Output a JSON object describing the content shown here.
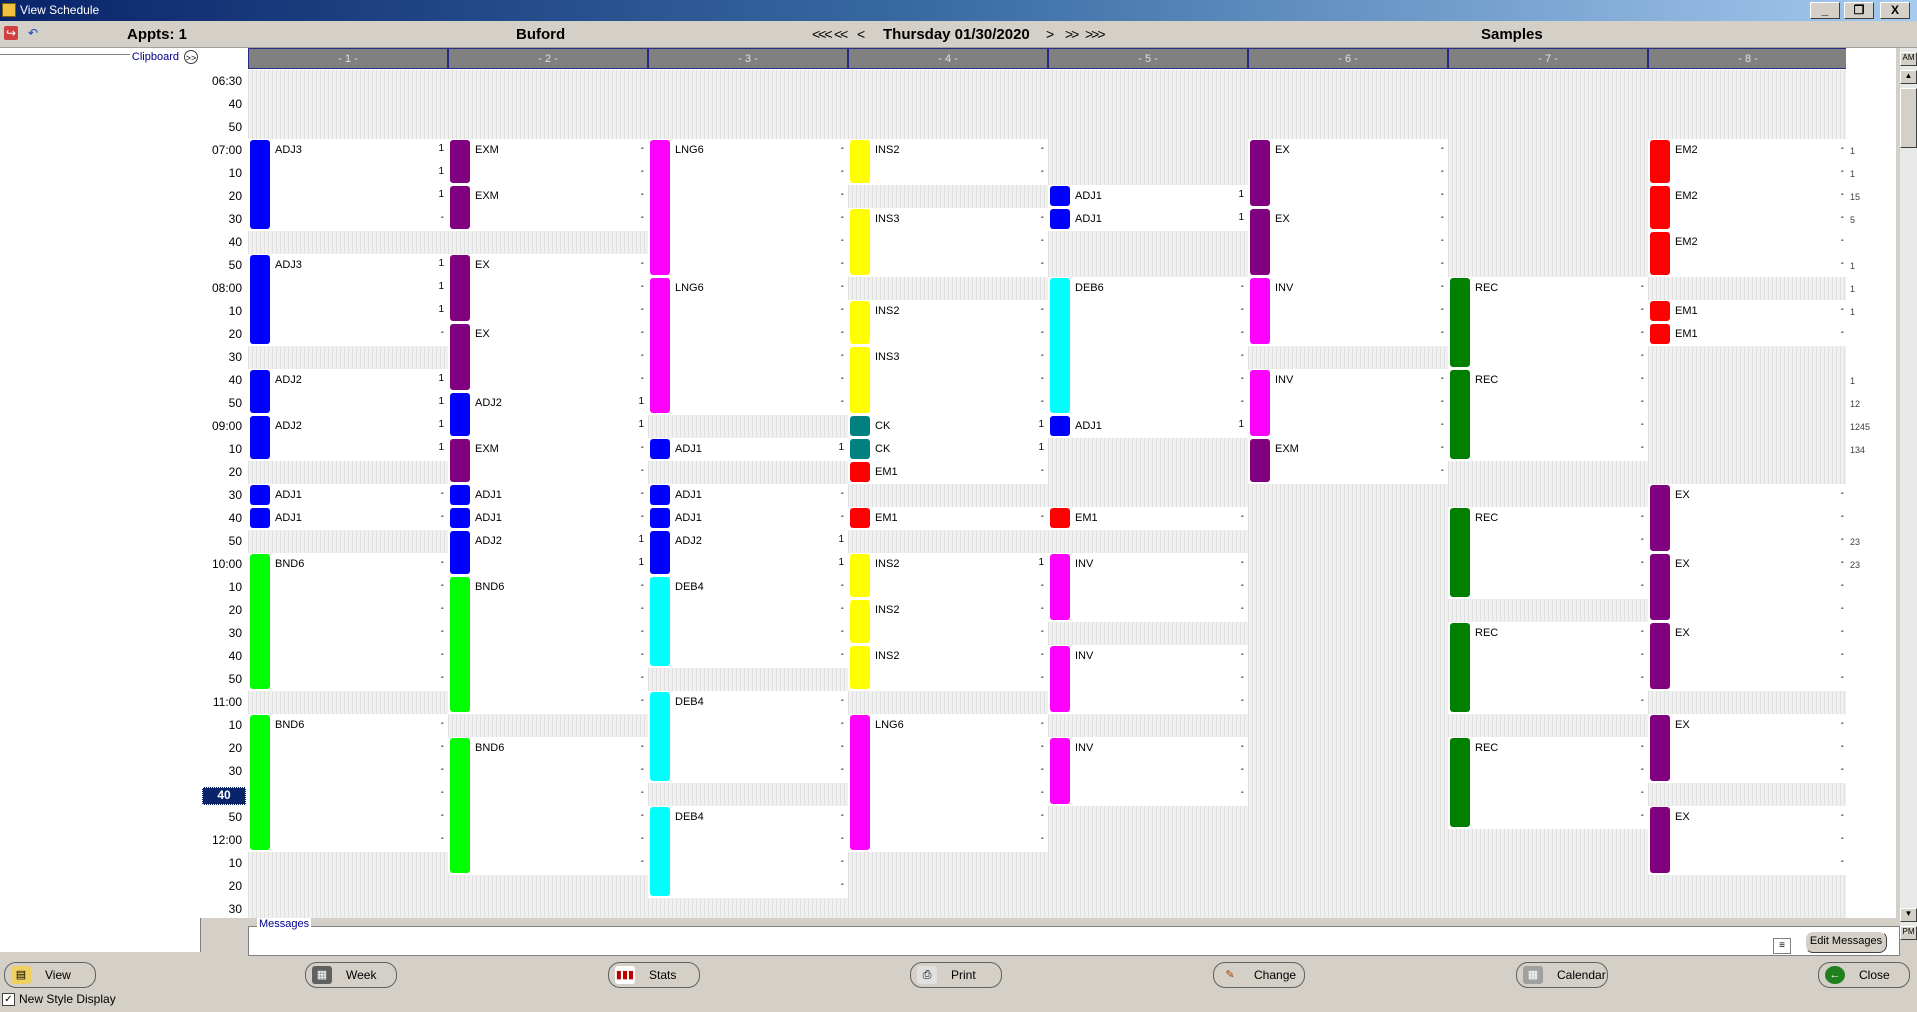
{
  "window": {
    "title": "View Schedule",
    "buttons": [
      "_",
      "❐",
      "X"
    ]
  },
  "header": {
    "appts": "Appts: 1",
    "location": "Buford",
    "nav_first": "<<<",
    "nav_prev_week": "<<",
    "nav_prev": "<",
    "date": "Thursday 01/30/2020",
    "nav_next": ">",
    "nav_next_week": ">>",
    "nav_last": ">>>",
    "view_name": "Samples"
  },
  "left_panel": {
    "clipboard_label": "Clipboard",
    "clipboard_button": ">>"
  },
  "times": [
    "06:30",
    "40",
    "50",
    "07:00",
    "10",
    "20",
    "30",
    "40",
    "50",
    "08:00",
    "10",
    "20",
    "30",
    "40",
    "50",
    "09:00",
    "10",
    "20",
    "30",
    "40",
    "50",
    "10:00",
    "10",
    "20",
    "30",
    "40",
    "50",
    "11:00",
    "10",
    "20",
    "30",
    "40",
    "50",
    "12:00",
    "10",
    "20",
    "30"
  ],
  "selected_time_index": 31,
  "columns": [
    "- 1 -",
    "- 2 -",
    "- 3 -",
    "- 4 -",
    "- 5 -",
    "- 6 -",
    "- 7 -",
    "- 8 -"
  ],
  "colors": {
    "ADJ": "#0000ff",
    "EXM": "#800080",
    "LNG6": "#ff00ff",
    "INS": "#ffff00",
    "EM": "#ff0000",
    "DEB6": "#00ffff",
    "EX": "#800080",
    "REC": "#008000",
    "BND6": "#00ff00",
    "CK": "#008080",
    "INV": "#ff00ff",
    "DEB4": "#00ffff"
  },
  "appointments": [
    {
      "col": 0,
      "slot": 3,
      "len": 4,
      "code": "ADJ3",
      "color": "#0000ff",
      "vals": [
        "1",
        "1",
        "1",
        "-"
      ]
    },
    {
      "col": 0,
      "slot": 8,
      "len": 4,
      "code": "ADJ3",
      "color": "#0000ff",
      "vals": [
        "1",
        "1",
        "1",
        "-"
      ]
    },
    {
      "col": 0,
      "slot": 13,
      "len": 2,
      "code": "ADJ2",
      "color": "#0000ff",
      "vals": [
        "1",
        "1"
      ]
    },
    {
      "col": 0,
      "slot": 15,
      "len": 2,
      "code": "ADJ2",
      "color": "#0000ff",
      "vals": [
        "1",
        "1"
      ]
    },
    {
      "col": 0,
      "slot": 18,
      "len": 1,
      "code": "ADJ1",
      "color": "#0000ff",
      "vals": [
        "-"
      ]
    },
    {
      "col": 0,
      "slot": 19,
      "len": 1,
      "code": "ADJ1",
      "color": "#0000ff",
      "vals": [
        "-"
      ]
    },
    {
      "col": 0,
      "slot": 21,
      "len": 6,
      "code": "BND6",
      "color": "#00ff00",
      "vals": [
        "-",
        "-",
        "-",
        "-",
        "-",
        "-"
      ]
    },
    {
      "col": 0,
      "slot": 28,
      "len": 6,
      "code": "BND6",
      "color": "#00ff00",
      "vals": [
        "-",
        "-",
        "-",
        "-",
        "-",
        "-"
      ]
    },
    {
      "col": 1,
      "slot": 3,
      "len": 2,
      "code": "EXM",
      "color": "#800080",
      "vals": [
        "-",
        "-"
      ]
    },
    {
      "col": 1,
      "slot": 5,
      "len": 2,
      "code": "EXM",
      "color": "#800080",
      "vals": [
        "-",
        "-"
      ]
    },
    {
      "col": 1,
      "slot": 8,
      "len": 3,
      "code": "EX",
      "color": "#800080",
      "vals": [
        "-",
        "-",
        "-"
      ]
    },
    {
      "col": 1,
      "slot": 11,
      "len": 3,
      "code": "EX",
      "color": "#800080",
      "vals": [
        "-",
        "-",
        "-"
      ]
    },
    {
      "col": 1,
      "slot": 14,
      "len": 2,
      "code": "ADJ2",
      "color": "#0000ff",
      "vals": [
        "1",
        "1"
      ]
    },
    {
      "col": 1,
      "slot": 16,
      "len": 2,
      "code": "EXM",
      "color": "#800080",
      "vals": [
        "-",
        "-"
      ]
    },
    {
      "col": 1,
      "slot": 18,
      "len": 1,
      "code": "ADJ1",
      "color": "#0000ff",
      "vals": [
        "-"
      ]
    },
    {
      "col": 1,
      "slot": 19,
      "len": 1,
      "code": "ADJ1",
      "color": "#0000ff",
      "vals": [
        "-"
      ]
    },
    {
      "col": 1,
      "slot": 20,
      "len": 2,
      "code": "ADJ2",
      "color": "#0000ff",
      "vals": [
        "1",
        "1"
      ]
    },
    {
      "col": 1,
      "slot": 22,
      "len": 6,
      "code": "BND6",
      "color": "#00ff00",
      "vals": [
        "-",
        "-",
        "-",
        "-",
        "-",
        "-"
      ]
    },
    {
      "col": 1,
      "slot": 29,
      "len": 6,
      "code": "BND6",
      "color": "#00ff00",
      "vals": [
        "-",
        "-",
        "-",
        "-",
        "-",
        "-"
      ]
    },
    {
      "col": 2,
      "slot": 3,
      "len": 6,
      "code": "LNG6",
      "color": "#ff00ff",
      "vals": [
        "-",
        "-",
        "-",
        "-",
        "-",
        "-"
      ]
    },
    {
      "col": 2,
      "slot": 9,
      "len": 6,
      "code": "LNG6",
      "color": "#ff00ff",
      "vals": [
        "-",
        "-",
        "-",
        "-",
        "-",
        "-"
      ]
    },
    {
      "col": 2,
      "slot": 16,
      "len": 1,
      "code": "ADJ1",
      "color": "#0000ff",
      "vals": [
        "1"
      ]
    },
    {
      "col": 2,
      "slot": 18,
      "len": 1,
      "code": "ADJ1",
      "color": "#0000ff",
      "vals": [
        "-"
      ]
    },
    {
      "col": 2,
      "slot": 19,
      "len": 1,
      "code": "ADJ1",
      "color": "#0000ff",
      "vals": [
        "-"
      ]
    },
    {
      "col": 2,
      "slot": 20,
      "len": 2,
      "code": "ADJ2",
      "color": "#0000ff",
      "vals": [
        "1",
        "1"
      ]
    },
    {
      "col": 2,
      "slot": 22,
      "len": 4,
      "code": "DEB4",
      "color": "#00ffff",
      "vals": [
        "-",
        "-",
        "-",
        "-"
      ]
    },
    {
      "col": 2,
      "slot": 27,
      "len": 4,
      "code": "DEB4",
      "color": "#00ffff",
      "vals": [
        "-",
        "-",
        "-",
        "-"
      ]
    },
    {
      "col": 2,
      "slot": 32,
      "len": 4,
      "code": "DEB4",
      "color": "#00ffff",
      "vals": [
        "-",
        "-",
        "-",
        "-"
      ]
    },
    {
      "col": 3,
      "slot": 3,
      "len": 2,
      "code": "INS2",
      "color": "#ffff00",
      "vals": [
        "-",
        "-"
      ]
    },
    {
      "col": 3,
      "slot": 6,
      "len": 3,
      "code": "INS3",
      "color": "#ffff00",
      "vals": [
        "-",
        "-",
        "-"
      ]
    },
    {
      "col": 3,
      "slot": 10,
      "len": 2,
      "code": "INS2",
      "color": "#ffff00",
      "vals": [
        "-",
        "-"
      ]
    },
    {
      "col": 3,
      "slot": 12,
      "len": 3,
      "code": "INS3",
      "color": "#ffff00",
      "vals": [
        "-",
        "-",
        "-"
      ]
    },
    {
      "col": 3,
      "slot": 15,
      "len": 1,
      "code": "CK",
      "color": "#008080",
      "vals": [
        "1"
      ]
    },
    {
      "col": 3,
      "slot": 16,
      "len": 1,
      "code": "CK",
      "color": "#008080",
      "vals": [
        "1"
      ]
    },
    {
      "col": 3,
      "slot": 17,
      "len": 1,
      "code": "EM1",
      "color": "#ff0000",
      "vals": [
        "-"
      ]
    },
    {
      "col": 3,
      "slot": 19,
      "len": 1,
      "code": "EM1",
      "color": "#ff0000",
      "vals": [
        "-"
      ]
    },
    {
      "col": 3,
      "slot": 21,
      "len": 2,
      "code": "INS2",
      "color": "#ffff00",
      "vals": [
        "1",
        "-"
      ]
    },
    {
      "col": 3,
      "slot": 23,
      "len": 2,
      "code": "INS2",
      "color": "#ffff00",
      "vals": [
        "-",
        "-"
      ]
    },
    {
      "col": 3,
      "slot": 25,
      "len": 2,
      "code": "INS2",
      "color": "#ffff00",
      "vals": [
        "-",
        "-"
      ]
    },
    {
      "col": 3,
      "slot": 28,
      "len": 6,
      "code": "LNG6",
      "color": "#ff00ff",
      "vals": [
        "-",
        "-",
        "-",
        "-",
        "-",
        "-"
      ]
    },
    {
      "col": 4,
      "slot": 5,
      "len": 1,
      "code": "ADJ1",
      "color": "#0000ff",
      "vals": [
        "1"
      ]
    },
    {
      "col": 4,
      "slot": 6,
      "len": 1,
      "code": "ADJ1",
      "color": "#0000ff",
      "vals": [
        "1"
      ]
    },
    {
      "col": 4,
      "slot": 9,
      "len": 6,
      "code": "DEB6",
      "color": "#00ffff",
      "vals": [
        "-",
        "-",
        "-",
        "-",
        "-",
        "-"
      ]
    },
    {
      "col": 4,
      "slot": 15,
      "len": 1,
      "code": "ADJ1",
      "color": "#0000ff",
      "vals": [
        "1"
      ]
    },
    {
      "col": 4,
      "slot": 19,
      "len": 1,
      "code": "EM1",
      "color": "#ff0000",
      "vals": [
        "-"
      ]
    },
    {
      "col": 4,
      "slot": 21,
      "len": 3,
      "code": "INV",
      "color": "#ff00ff",
      "vals": [
        "-",
        "-",
        "-"
      ]
    },
    {
      "col": 4,
      "slot": 25,
      "len": 3,
      "code": "INV",
      "color": "#ff00ff",
      "vals": [
        "-",
        "-",
        "-"
      ]
    },
    {
      "col": 4,
      "slot": 29,
      "len": 3,
      "code": "INV",
      "color": "#ff00ff",
      "vals": [
        "-",
        "-",
        "-"
      ]
    },
    {
      "col": 5,
      "slot": 3,
      "len": 3,
      "code": "EX",
      "color": "#800080",
      "vals": [
        "-",
        "-",
        "-"
      ]
    },
    {
      "col": 5,
      "slot": 6,
      "len": 3,
      "code": "EX",
      "color": "#800080",
      "vals": [
        "-",
        "-",
        "-"
      ]
    },
    {
      "col": 5,
      "slot": 9,
      "len": 3,
      "code": "INV",
      "color": "#ff00ff",
      "vals": [
        "-",
        "-",
        "-"
      ]
    },
    {
      "col": 5,
      "slot": 13,
      "len": 3,
      "code": "INV",
      "color": "#ff00ff",
      "vals": [
        "-",
        "-",
        "-"
      ]
    },
    {
      "col": 5,
      "slot": 16,
      "len": 2,
      "code": "EXM",
      "color": "#800080",
      "vals": [
        "-",
        "-"
      ]
    },
    {
      "col": 6,
      "slot": 9,
      "len": 4,
      "code": "REC",
      "color": "#008000",
      "vals": [
        "-",
        "-",
        "-",
        "-"
      ]
    },
    {
      "col": 6,
      "slot": 13,
      "len": 4,
      "code": "REC",
      "color": "#008000",
      "vals": [
        "-",
        "-",
        "-",
        "-"
      ]
    },
    {
      "col": 6,
      "slot": 19,
      "len": 4,
      "code": "REC",
      "color": "#008000",
      "vals": [
        "-",
        "-",
        "-",
        "-"
      ]
    },
    {
      "col": 6,
      "slot": 24,
      "len": 4,
      "code": "REC",
      "color": "#008000",
      "vals": [
        "-",
        "-",
        "-",
        "-"
      ]
    },
    {
      "col": 6,
      "slot": 29,
      "len": 4,
      "code": "REC",
      "color": "#008000",
      "vals": [
        "-",
        "-",
        "-",
        "-"
      ]
    },
    {
      "col": 7,
      "slot": 3,
      "len": 2,
      "code": "EM2",
      "color": "#ff0000",
      "vals": [
        "-",
        "-"
      ]
    },
    {
      "col": 7,
      "slot": 5,
      "len": 2,
      "code": "EM2",
      "color": "#ff0000",
      "vals": [
        "-",
        "-"
      ]
    },
    {
      "col": 7,
      "slot": 7,
      "len": 2,
      "code": "EM2",
      "color": "#ff0000",
      "vals": [
        "-",
        "-"
      ]
    },
    {
      "col": 7,
      "slot": 10,
      "len": 1,
      "code": "EM1",
      "color": "#ff0000",
      "vals": [
        "-"
      ]
    },
    {
      "col": 7,
      "slot": 11,
      "len": 1,
      "code": "EM1",
      "color": "#ff0000",
      "vals": [
        "-"
      ]
    },
    {
      "col": 7,
      "slot": 18,
      "len": 3,
      "code": "EX",
      "color": "#800080",
      "vals": [
        "-",
        "-",
        "-"
      ]
    },
    {
      "col": 7,
      "slot": 21,
      "len": 3,
      "code": "EX",
      "color": "#800080",
      "vals": [
        "-",
        "-",
        "-"
      ]
    },
    {
      "col": 7,
      "slot": 24,
      "len": 3,
      "code": "EX",
      "color": "#800080",
      "vals": [
        "-",
        "-",
        "-"
      ]
    },
    {
      "col": 7,
      "slot": 28,
      "len": 3,
      "code": "EX",
      "color": "#800080",
      "vals": [
        "-",
        "-",
        "-"
      ]
    },
    {
      "col": 7,
      "slot": 32,
      "len": 3,
      "code": "EX",
      "color": "#800080",
      "vals": [
        "-",
        "-",
        "-"
      ]
    }
  ],
  "right_notes": [
    {
      "slot": 3,
      "text": "1"
    },
    {
      "slot": 4,
      "text": "1"
    },
    {
      "slot": 5,
      "text": "15"
    },
    {
      "slot": 6,
      "text": "5"
    },
    {
      "slot": 8,
      "text": "1"
    },
    {
      "slot": 9,
      "text": "1"
    },
    {
      "slot": 10,
      "text": "1"
    },
    {
      "slot": 13,
      "text": "1"
    },
    {
      "slot": 14,
      "text": "12"
    },
    {
      "slot": 15,
      "text": "1245"
    },
    {
      "slot": 16,
      "text": "134"
    },
    {
      "slot": 20,
      "text": "23"
    },
    {
      "slot": 21,
      "text": "23"
    }
  ],
  "scroll": {
    "am": "AM",
    "pm": "PM"
  },
  "messages": {
    "label": "Messages",
    "edit_button": "Edit Messages"
  },
  "buttons": [
    {
      "label": "View",
      "icon": "view-icon"
    },
    {
      "label": "Week",
      "icon": "week-icon"
    },
    {
      "label": "Stats",
      "icon": "stats-icon"
    },
    {
      "label": "Print",
      "icon": "print-icon"
    },
    {
      "label": "Change",
      "icon": "change-icon"
    },
    {
      "label": "Calendar",
      "icon": "calendar-icon"
    },
    {
      "label": "Close",
      "icon": "close-icon"
    }
  ],
  "new_style_display": {
    "label": "New Style Display",
    "checked": true
  }
}
